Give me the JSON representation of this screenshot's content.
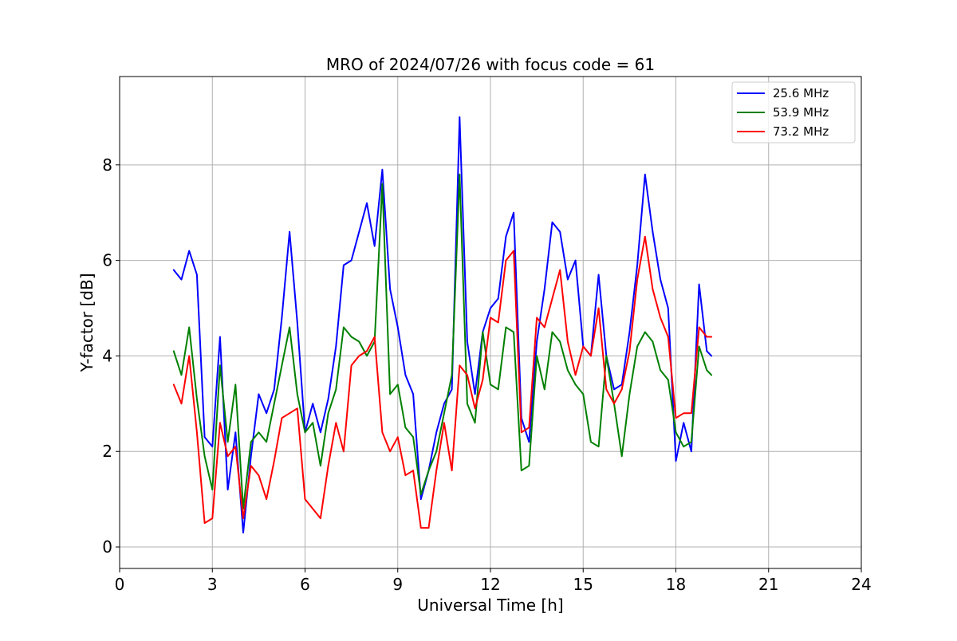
{
  "chart_data": {
    "type": "line",
    "title": "MRO of 2024/07/26 with focus code = 61",
    "xlabel": "Universal Time [h]",
    "ylabel": "Y-factor [dB]",
    "xlim": [
      0,
      24
    ],
    "ylim": [
      -0.45,
      9.85
    ],
    "x_ticks": [
      "0",
      "3",
      "6",
      "9",
      "12",
      "15",
      "18",
      "21",
      "24"
    ],
    "y_ticks": [
      "0",
      "2",
      "4",
      "6",
      "8"
    ],
    "grid": true,
    "legend_position": "top-right",
    "x": [
      1.75,
      2.0,
      2.25,
      2.5,
      2.75,
      3.0,
      3.25,
      3.5,
      3.75,
      4.0,
      4.25,
      4.5,
      4.75,
      5.0,
      5.25,
      5.5,
      5.75,
      6.0,
      6.25,
      6.5,
      6.75,
      7.0,
      7.25,
      7.5,
      7.75,
      8.0,
      8.25,
      8.5,
      8.75,
      9.0,
      9.25,
      9.5,
      9.75,
      10.0,
      10.25,
      10.5,
      10.75,
      11.0,
      11.25,
      11.5,
      11.75,
      12.0,
      12.25,
      12.5,
      12.75,
      13.0,
      13.25,
      13.5,
      13.75,
      14.0,
      14.25,
      14.5,
      14.75,
      15.0,
      15.25,
      15.5,
      15.75,
      16.0,
      16.25,
      16.5,
      16.75,
      17.0,
      17.25,
      17.5,
      17.75,
      18.0,
      18.25,
      18.5,
      18.75,
      19.0,
      19.15
    ],
    "series": [
      {
        "name": "   25.6 MHz",
        "color": "#0000ff",
        "values": [
          5.8,
          5.6,
          6.2,
          5.7,
          2.3,
          2.1,
          4.4,
          1.2,
          2.4,
          0.3,
          1.9,
          3.2,
          2.8,
          3.3,
          4.8,
          6.6,
          4.7,
          2.4,
          3.0,
          2.4,
          3.1,
          4.2,
          5.9,
          6.0,
          6.6,
          7.2,
          6.3,
          7.9,
          5.4,
          4.6,
          3.6,
          3.2,
          1.0,
          1.6,
          2.4,
          3.0,
          3.3,
          9.0,
          4.3,
          3.2,
          4.5,
          5.0,
          5.2,
          6.5,
          7.0,
          2.7,
          2.2,
          4.3,
          5.4,
          6.8,
          6.6,
          5.6,
          6.0,
          4.2,
          4.0,
          5.7,
          4.0,
          3.3,
          3.4,
          4.5,
          5.9,
          7.8,
          6.6,
          5.6,
          5.0,
          1.8,
          2.6,
          2.0,
          5.5,
          4.1,
          4.0
        ]
      },
      {
        "name": "   53.9 MHz",
        "color": "#008000",
        "values": [
          4.1,
          3.6,
          4.6,
          3.1,
          1.9,
          1.2,
          3.8,
          2.2,
          3.4,
          0.8,
          2.2,
          2.4,
          2.2,
          3.0,
          3.8,
          4.6,
          3.2,
          2.4,
          2.6,
          1.7,
          2.8,
          3.3,
          4.6,
          4.4,
          4.3,
          4.0,
          4.3,
          7.6,
          3.2,
          3.4,
          2.5,
          2.3,
          1.1,
          1.6,
          2.0,
          2.8,
          3.6,
          7.8,
          3.0,
          2.6,
          4.5,
          3.4,
          3.3,
          4.6,
          4.5,
          1.6,
          1.7,
          4.0,
          3.3,
          4.5,
          4.3,
          3.7,
          3.4,
          3.2,
          2.2,
          2.1,
          4.0,
          3.0,
          1.9,
          3.2,
          4.2,
          4.5,
          4.3,
          3.7,
          3.5,
          2.4,
          2.1,
          2.2,
          4.2,
          3.7,
          3.6
        ]
      },
      {
        "name": "   73.2 MHz",
        "color": "#ff0000",
        "values": [
          3.4,
          3.0,
          4.0,
          2.4,
          0.5,
          0.6,
          2.6,
          1.9,
          2.1,
          0.6,
          1.7,
          1.5,
          1.0,
          1.8,
          2.7,
          2.8,
          2.9,
          1.0,
          0.8,
          0.6,
          1.7,
          2.6,
          2.0,
          3.8,
          4.0,
          4.1,
          4.4,
          2.4,
          2.0,
          2.3,
          1.5,
          1.6,
          0.4,
          0.4,
          1.6,
          2.6,
          1.6,
          3.8,
          3.6,
          2.9,
          3.5,
          4.8,
          4.7,
          6.0,
          6.2,
          2.4,
          2.5,
          4.8,
          4.6,
          5.2,
          5.8,
          4.3,
          3.6,
          4.2,
          4.0,
          5.0,
          3.3,
          3.0,
          3.3,
          4.1,
          5.6,
          6.5,
          5.4,
          4.8,
          4.4,
          2.7,
          2.8,
          2.8,
          4.6,
          4.4,
          4.4
        ]
      }
    ]
  }
}
